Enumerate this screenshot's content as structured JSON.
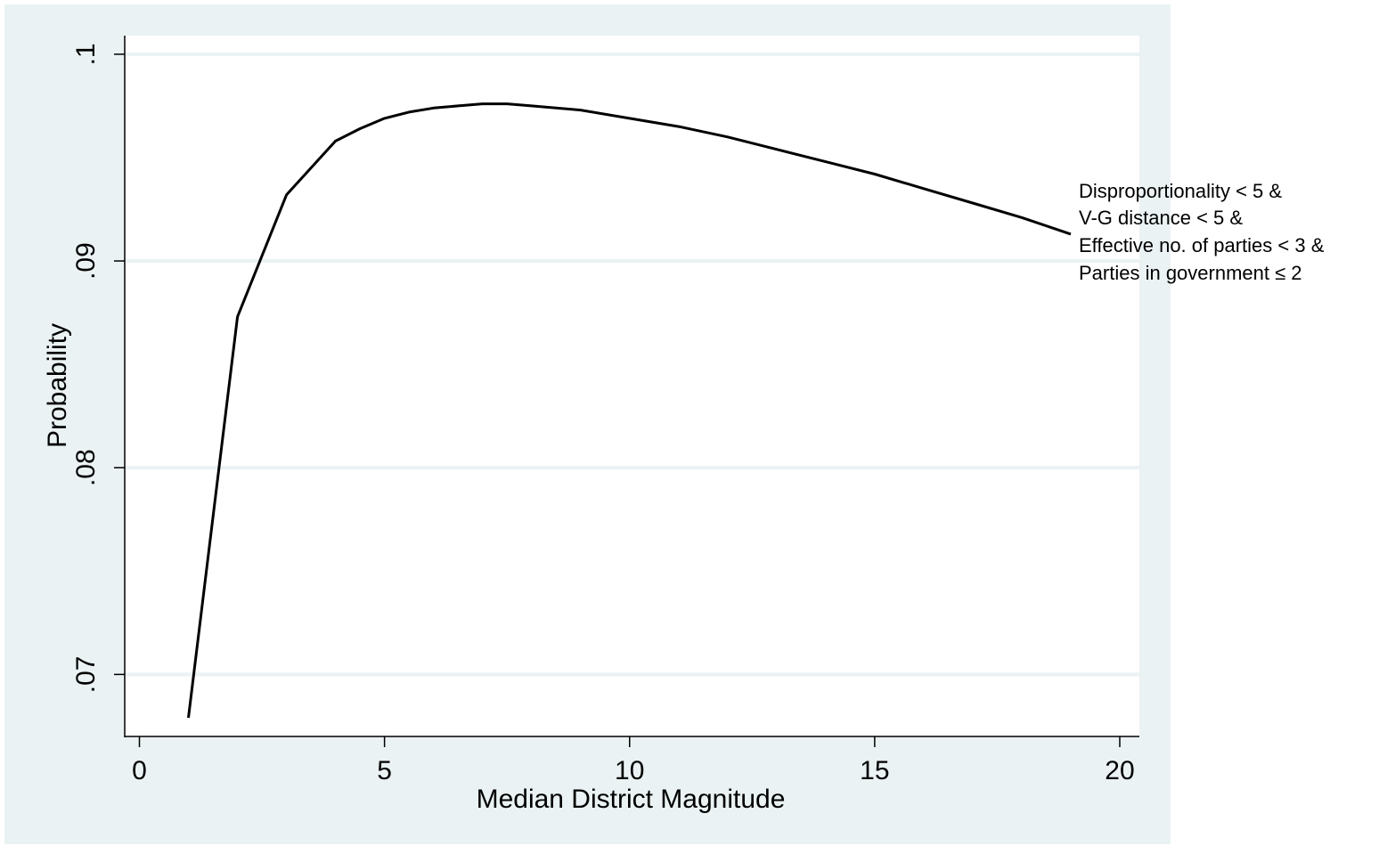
{
  "chart_data": {
    "type": "line",
    "title": "",
    "xlabel": "Median District Magnitude",
    "ylabel": "Probability",
    "xlim": [
      -0.3,
      20.4
    ],
    "ylim": [
      0.067,
      0.1009
    ],
    "grid": true,
    "x_ticks": [
      0,
      5,
      10,
      15,
      20
    ],
    "x_tick_labels": [
      "0",
      "5",
      "10",
      "15",
      "20"
    ],
    "y_ticks": [
      0.07,
      0.08,
      0.09,
      0.1
    ],
    "y_tick_labels": [
      ".07",
      ".08",
      ".09",
      ".1"
    ],
    "series": [
      {
        "x": [
          1,
          2,
          3,
          4,
          4.5,
          5,
          5.5,
          6,
          6.5,
          7,
          7.5,
          8,
          9,
          10,
          11,
          12,
          13,
          14,
          15,
          16,
          17,
          18,
          19
        ],
        "y": [
          0.0679,
          0.0873,
          0.0932,
          0.0958,
          0.0964,
          0.0969,
          0.0972,
          0.0974,
          0.0975,
          0.0976,
          0.0976,
          0.0975,
          0.0973,
          0.0969,
          0.0965,
          0.096,
          0.0954,
          0.0948,
          0.0942,
          0.0935,
          0.0928,
          0.0921,
          0.0913
        ]
      }
    ],
    "annotation": [
      "Disproportionality < 5 &",
      "V-G distance < 5 &",
      "Effective no. of parties < 3 &",
      "Parties in government ≤ 2"
    ],
    "colors": {
      "outer_background": "#eaf2f3",
      "plot_background": "#ffffff",
      "gridline": "#eaf2f3",
      "line": "#000000",
      "axis": "#000000"
    }
  }
}
